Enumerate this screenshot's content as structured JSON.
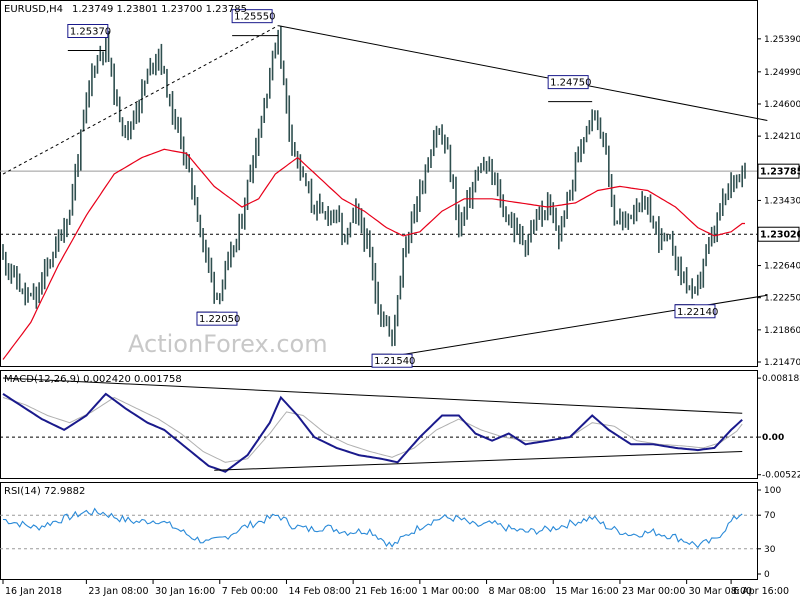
{
  "header": {
    "symbol": "EURUSD,H4",
    "ohlc": "1.23749 1.23801 1.23700 1.23785"
  },
  "watermark": "ActionForex.com",
  "chart_data": [
    {
      "panel": "price",
      "type": "ohlc",
      "title": "EURUSD,H4 1.23749 1.23801 1.23700 1.23785",
      "ylim": [
        1.2147,
        1.2574
      ],
      "y_ticks": [
        "1.25390",
        "1.24990",
        "1.24600",
        "1.24210",
        "1.23820",
        "1.23430",
        "1.23030",
        "1.22640",
        "1.22250",
        "1.21860",
        "1.21470"
      ],
      "last_price": "1.23785",
      "horizontal_line_label": "1.23020",
      "horizontal_line_value": 1.2302,
      "annotations": [
        {
          "label": "1.25370",
          "bar": 37,
          "value": 1.2537
        },
        {
          "label": "1.25550",
          "bar": 99,
          "value": 1.2555
        },
        {
          "label": "1.22050",
          "bar": 77,
          "value": 1.2205
        },
        {
          "label": "1.21540",
          "bar": 140,
          "value": 1.2154
        },
        {
          "label": "1.24750",
          "bar": 212,
          "value": 1.2475
        },
        {
          "label": "1.22140",
          "bar": 249,
          "value": 1.2214
        }
      ],
      "trendlines": [
        {
          "style": "solid",
          "from": {
            "bar": 99,
            "value": 1.2555
          },
          "to": {
            "bar": 270,
            "value": 1.244
          }
        },
        {
          "style": "solid",
          "from": {
            "bar": 140,
            "value": 1.2154
          },
          "to": {
            "bar": 270,
            "value": 1.2228
          }
        },
        {
          "style": "dashed",
          "from": {
            "bar": 0,
            "value": 1.2375
          },
          "to": {
            "bar": 99,
            "value": 1.2555
          }
        }
      ],
      "price_anchors": [
        [
          0,
          1.2275
        ],
        [
          4,
          1.225
        ],
        [
          8,
          1.2225
        ],
        [
          12,
          1.2225
        ],
        [
          16,
          1.2265
        ],
        [
          20,
          1.2295
        ],
        [
          24,
          1.233
        ],
        [
          28,
          1.242
        ],
        [
          32,
          1.25
        ],
        [
          37,
          1.2537
        ],
        [
          41,
          1.2455
        ],
        [
          45,
          1.2425
        ],
        [
          49,
          1.2465
        ],
        [
          53,
          1.2505
        ],
        [
          56,
          1.2525
        ],
        [
          60,
          1.246
        ],
        [
          64,
          1.2415
        ],
        [
          68,
          1.236
        ],
        [
          72,
          1.229
        ],
        [
          77,
          1.2225
        ],
        [
          81,
          1.2265
        ],
        [
          85,
          1.2305
        ],
        [
          89,
          1.238
        ],
        [
          93,
          1.244
        ],
        [
          96,
          1.25
        ],
        [
          99,
          1.2545
        ],
        [
          103,
          1.243
        ],
        [
          107,
          1.238
        ],
        [
          111,
          1.234
        ],
        [
          115,
          1.2325
        ],
        [
          119,
          1.233
        ],
        [
          123,
          1.2295
        ],
        [
          127,
          1.233
        ],
        [
          131,
          1.229
        ],
        [
          135,
          1.2215
        ],
        [
          140,
          1.2175
        ],
        [
          144,
          1.228
        ],
        [
          148,
          1.233
        ],
        [
          152,
          1.238
        ],
        [
          156,
          1.243
        ],
        [
          160,
          1.24
        ],
        [
          164,
          1.231
        ],
        [
          168,
          1.235
        ],
        [
          172,
          1.2385
        ],
        [
          176,
          1.2375
        ],
        [
          180,
          1.233
        ],
        [
          184,
          1.231
        ],
        [
          188,
          1.229
        ],
        [
          192,
          1.232
        ],
        [
          196,
          1.2335
        ],
        [
          200,
          1.23
        ],
        [
          204,
          1.2355
        ],
        [
          208,
          1.2415
        ],
        [
          212,
          1.2455
        ],
        [
          216,
          1.242
        ],
        [
          220,
          1.232
        ],
        [
          224,
          1.2315
        ],
        [
          228,
          1.234
        ],
        [
          232,
          1.233
        ],
        [
          236,
          1.23
        ],
        [
          240,
          1.229
        ],
        [
          244,
          1.2255
        ],
        [
          249,
          1.2225
        ],
        [
          252,
          1.227
        ],
        [
          255,
          1.2295
        ],
        [
          258,
          1.233
        ],
        [
          262,
          1.2365
        ],
        [
          265,
          1.2378
        ]
      ],
      "ma_anchors": [
        [
          0,
          1.215
        ],
        [
          10,
          1.2195
        ],
        [
          20,
          1.2265
        ],
        [
          30,
          1.2325
        ],
        [
          40,
          1.2375
        ],
        [
          50,
          1.2395
        ],
        [
          58,
          1.2405
        ],
        [
          66,
          1.24
        ],
        [
          76,
          1.236
        ],
        [
          86,
          1.2335
        ],
        [
          92,
          1.2345
        ],
        [
          98,
          1.2375
        ],
        [
          106,
          1.2395
        ],
        [
          114,
          1.237
        ],
        [
          122,
          1.2345
        ],
        [
          130,
          1.233
        ],
        [
          138,
          1.231
        ],
        [
          144,
          1.23
        ],
        [
          150,
          1.2305
        ],
        [
          158,
          1.233
        ],
        [
          166,
          1.2345
        ],
        [
          176,
          1.2345
        ],
        [
          186,
          1.234
        ],
        [
          196,
          1.2335
        ],
        [
          206,
          1.234
        ],
        [
          214,
          1.2355
        ],
        [
          222,
          1.236
        ],
        [
          232,
          1.2355
        ],
        [
          242,
          1.2335
        ],
        [
          250,
          1.231
        ],
        [
          256,
          1.23
        ],
        [
          262,
          1.2305
        ],
        [
          266,
          1.2315
        ]
      ]
    },
    {
      "panel": "macd",
      "type": "line",
      "title": "MACD(12,26,9) 0.002420 0.001758",
      "ylim": [
        -0.0054,
        0.0082
      ],
      "y_ticks": [
        "0.008182",
        "0.00",
        "-0.005223"
      ],
      "zero_line": 0,
      "macd_anchors": [
        [
          0,
          0.006
        ],
        [
          8,
          0.004
        ],
        [
          14,
          0.0025
        ],
        [
          22,
          0.001
        ],
        [
          30,
          0.003
        ],
        [
          37,
          0.006
        ],
        [
          44,
          0.004
        ],
        [
          52,
          0.002
        ],
        [
          58,
          0.001
        ],
        [
          66,
          -0.0015
        ],
        [
          74,
          -0.004
        ],
        [
          80,
          -0.0048
        ],
        [
          88,
          -0.0025
        ],
        [
          96,
          0.002
        ],
        [
          100,
          0.0055
        ],
        [
          106,
          0.003
        ],
        [
          112,
          0.0
        ],
        [
          120,
          -0.0015
        ],
        [
          128,
          -0.0025
        ],
        [
          136,
          -0.003
        ],
        [
          142,
          -0.0035
        ],
        [
          150,
          0.0
        ],
        [
          158,
          0.003
        ],
        [
          164,
          0.003
        ],
        [
          170,
          0.0005
        ],
        [
          176,
          -0.0005
        ],
        [
          182,
          0.0005
        ],
        [
          188,
          -0.001
        ],
        [
          196,
          -0.0005
        ],
        [
          204,
          0.0
        ],
        [
          212,
          0.003
        ],
        [
          218,
          0.001
        ],
        [
          226,
          -0.001
        ],
        [
          234,
          -0.001
        ],
        [
          242,
          -0.0015
        ],
        [
          250,
          -0.0018
        ],
        [
          256,
          -0.0015
        ],
        [
          262,
          0.001
        ],
        [
          266,
          0.0024
        ]
      ],
      "signal_anchors": [
        [
          0,
          0.0055
        ],
        [
          8,
          0.0045
        ],
        [
          16,
          0.003
        ],
        [
          24,
          0.002
        ],
        [
          32,
          0.0035
        ],
        [
          40,
          0.0055
        ],
        [
          48,
          0.004
        ],
        [
          56,
          0.0025
        ],
        [
          64,
          0.0005
        ],
        [
          72,
          -0.002
        ],
        [
          80,
          -0.0035
        ],
        [
          88,
          -0.003
        ],
        [
          96,
          0.0005
        ],
        [
          102,
          0.0035
        ],
        [
          108,
          0.003
        ],
        [
          116,
          0.0005
        ],
        [
          124,
          -0.001
        ],
        [
          132,
          -0.002
        ],
        [
          140,
          -0.0028
        ],
        [
          148,
          -0.0015
        ],
        [
          156,
          0.001
        ],
        [
          164,
          0.0025
        ],
        [
          172,
          0.001
        ],
        [
          180,
          0.0
        ],
        [
          188,
          -0.0005
        ],
        [
          196,
          -0.0005
        ],
        [
          204,
          0.0
        ],
        [
          212,
          0.002
        ],
        [
          220,
          0.0015
        ],
        [
          228,
          -0.0005
        ],
        [
          236,
          -0.001
        ],
        [
          244,
          -0.0012
        ],
        [
          252,
          -0.0015
        ],
        [
          258,
          -0.0008
        ],
        [
          264,
          0.0008
        ],
        [
          266,
          0.0018
        ]
      ],
      "trendlines": [
        {
          "from": {
            "bar": 0,
            "value": 0.0082
          },
          "to": {
            "bar": 266,
            "value": 0.0033
          }
        },
        {
          "from": {
            "bar": 76,
            "value": -0.0046
          },
          "to": {
            "bar": 266,
            "value": -0.002
          }
        }
      ]
    },
    {
      "panel": "rsi",
      "type": "line",
      "title": "RSI(14) 72.9882",
      "ylim": [
        0,
        100
      ],
      "y_ticks": [
        "100",
        "70",
        "30",
        "0"
      ],
      "guide_levels": [
        70,
        30
      ],
      "rsi_anchors": [
        [
          0,
          65
        ],
        [
          6,
          60
        ],
        [
          12,
          55
        ],
        [
          18,
          62
        ],
        [
          24,
          68
        ],
        [
          30,
          74
        ],
        [
          36,
          73
        ],
        [
          42,
          66
        ],
        [
          48,
          62
        ],
        [
          56,
          64
        ],
        [
          62,
          55
        ],
        [
          68,
          44
        ],
        [
          74,
          37
        ],
        [
          80,
          44
        ],
        [
          86,
          55
        ],
        [
          92,
          62
        ],
        [
          99,
          70
        ],
        [
          104,
          58
        ],
        [
          110,
          53
        ],
        [
          116,
          56
        ],
        [
          124,
          50
        ],
        [
          132,
          52
        ],
        [
          140,
          33
        ],
        [
          146,
          48
        ],
        [
          152,
          60
        ],
        [
          158,
          67
        ],
        [
          164,
          66
        ],
        [
          170,
          57
        ],
        [
          176,
          60
        ],
        [
          182,
          54
        ],
        [
          188,
          50
        ],
        [
          196,
          53
        ],
        [
          204,
          60
        ],
        [
          212,
          67
        ],
        [
          218,
          55
        ],
        [
          226,
          47
        ],
        [
          234,
          50
        ],
        [
          242,
          44
        ],
        [
          250,
          34
        ],
        [
          256,
          40
        ],
        [
          262,
          62
        ],
        [
          266,
          73
        ]
      ]
    }
  ],
  "x_axis": {
    "labels": [
      {
        "bar": 0,
        "text": "16 Jan 2018"
      },
      {
        "bar": 30,
        "text": "23 Jan 08:00"
      },
      {
        "bar": 54,
        "text": "30 Jan 16:00"
      },
      {
        "bar": 78,
        "text": "7 Feb 00:00"
      },
      {
        "bar": 102,
        "text": "14 Feb 08:00"
      },
      {
        "bar": 126,
        "text": "21 Feb 16:00"
      },
      {
        "bar": 150,
        "text": "1 Mar 00:00"
      },
      {
        "bar": 174,
        "text": "8 Mar 08:00"
      },
      {
        "bar": 198,
        "text": "15 Mar 16:00"
      },
      {
        "bar": 222,
        "text": "23 Mar 00:00"
      },
      {
        "bar": 246,
        "text": "30 Mar 08:00"
      },
      {
        "bar": 262,
        "text": "6 Apr 16:00"
      }
    ]
  },
  "colors": {
    "bars": "#2f4f4f",
    "ma": "#e8001a",
    "macd": "#1a1a8c",
    "signal": "#b0b0b0",
    "rsi": "#2a8ad8",
    "label_border": "#1a1a8c",
    "watermark": "#c8c8c8"
  }
}
